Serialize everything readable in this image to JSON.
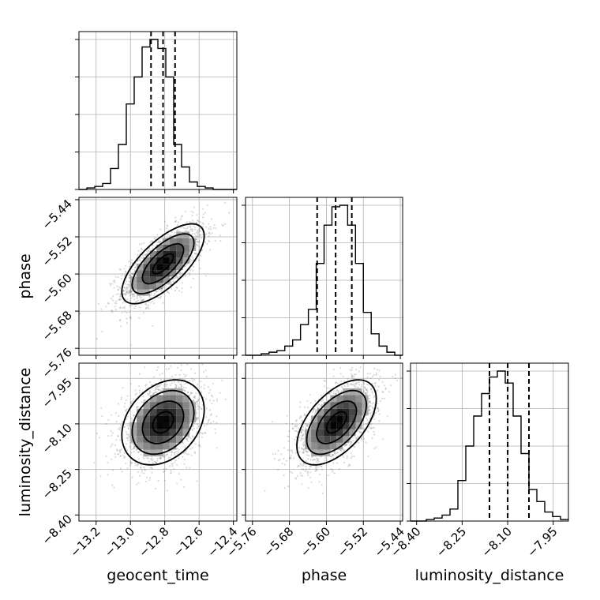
{
  "chart_data": {
    "type": "corner",
    "parameters": [
      "geocent_time",
      "phase",
      "luminosity_distance"
    ],
    "axis_labels": {
      "x": [
        "geocent_time",
        "phase",
        "luminosity_distance"
      ],
      "y": [
        "phase",
        "luminosity_distance"
      ]
    },
    "ranges": {
      "geocent_time": [
        -13.3,
        -12.38
      ],
      "phase": [
        -5.775,
        -5.435
      ],
      "luminosity_distance": [
        -8.42,
        -7.9
      ]
    },
    "ticks": {
      "geocent_time": [
        -13.2,
        -13.0,
        -12.8,
        -12.6,
        -12.4
      ],
      "phase": [
        -5.76,
        -5.68,
        -5.6,
        -5.52,
        -5.44
      ],
      "luminosity_distance": [
        -8.4,
        -8.25,
        -8.1,
        -7.95
      ]
    },
    "tick_labels": {
      "geocent_time": [
        "−13.2",
        "−13.0",
        "−12.8",
        "−12.6",
        "−12.4"
      ],
      "phase": [
        "−5.76",
        "−5.68",
        "−5.60",
        "−5.52",
        "−5.44"
      ],
      "luminosity_distance": [
        "−8.40",
        "−8.25",
        "−8.10",
        "−7.95"
      ]
    },
    "quantiles": {
      "geocent_time": [
        -12.88,
        -12.81,
        -12.74
      ],
      "phase": [
        -5.62,
        -5.58,
        -5.545
      ],
      "luminosity_distance": [
        -8.16,
        -8.1,
        -8.03
      ]
    },
    "histograms": {
      "geocent_time": {
        "edges": [
          -13.3,
          -13.254,
          -13.208,
          -13.162,
          -13.116,
          -13.07,
          -13.024,
          -12.978,
          -12.932,
          -12.886,
          -12.84,
          -12.794,
          -12.748,
          -12.702,
          -12.656,
          -12.61,
          -12.564,
          -12.518,
          -12.472,
          -12.426,
          -12.38
        ],
        "counts": [
          0,
          1,
          2,
          4,
          14,
          30,
          57,
          75,
          95,
          100,
          94,
          75,
          30,
          15,
          5,
          2,
          1,
          0,
          0,
          0
        ]
      },
      "phase": {
        "edges": [
          -5.775,
          -5.758,
          -5.741,
          -5.724,
          -5.707,
          -5.69,
          -5.673,
          -5.656,
          -5.639,
          -5.622,
          -5.605,
          -5.588,
          -5.571,
          -5.554,
          -5.537,
          -5.52,
          -5.503,
          -5.486,
          -5.469,
          -5.452,
          -5.435
        ],
        "counts": [
          0,
          0,
          1,
          2,
          3,
          6,
          10,
          20,
          30,
          60,
          85,
          97,
          98,
          85,
          60,
          28,
          14,
          6,
          2,
          0
        ]
      },
      "luminosity_distance": {
        "edges": [
          -8.42,
          -8.394,
          -8.368,
          -8.342,
          -8.316,
          -8.29,
          -8.264,
          -8.238,
          -8.212,
          -8.186,
          -8.16,
          -8.134,
          -8.108,
          -8.082,
          -8.056,
          -8.03,
          -8.004,
          -7.978,
          -7.952,
          -7.926,
          -7.9
        ],
        "counts": [
          0,
          0,
          1,
          2,
          4,
          8,
          27,
          50,
          70,
          85,
          96,
          100,
          92,
          70,
          45,
          21,
          13,
          6,
          3,
          1
        ]
      }
    },
    "scatter_2d": [
      {
        "x": "geocent_time",
        "y": "phase",
        "mean": [
          -12.81,
          -5.578
        ],
        "sd": [
          0.12,
          0.043
        ],
        "corr": 0.7
      },
      {
        "x": "geocent_time",
        "y": "luminosity_distance",
        "mean": [
          -12.81,
          -8.095
        ],
        "sd": [
          0.12,
          0.07
        ],
        "corr": 0.3
      },
      {
        "x": "phase",
        "y": "luminosity_distance",
        "mean": [
          -5.578,
          -8.095
        ],
        "sd": [
          0.043,
          0.07
        ],
        "corr": 0.55
      }
    ],
    "contour_sigma_levels": [
      0.5,
      1.0,
      1.5,
      2.0
    ],
    "grid": true,
    "colors": {
      "line": "#000000",
      "scatter": "#555555",
      "grid": "#b0b0b0"
    }
  }
}
